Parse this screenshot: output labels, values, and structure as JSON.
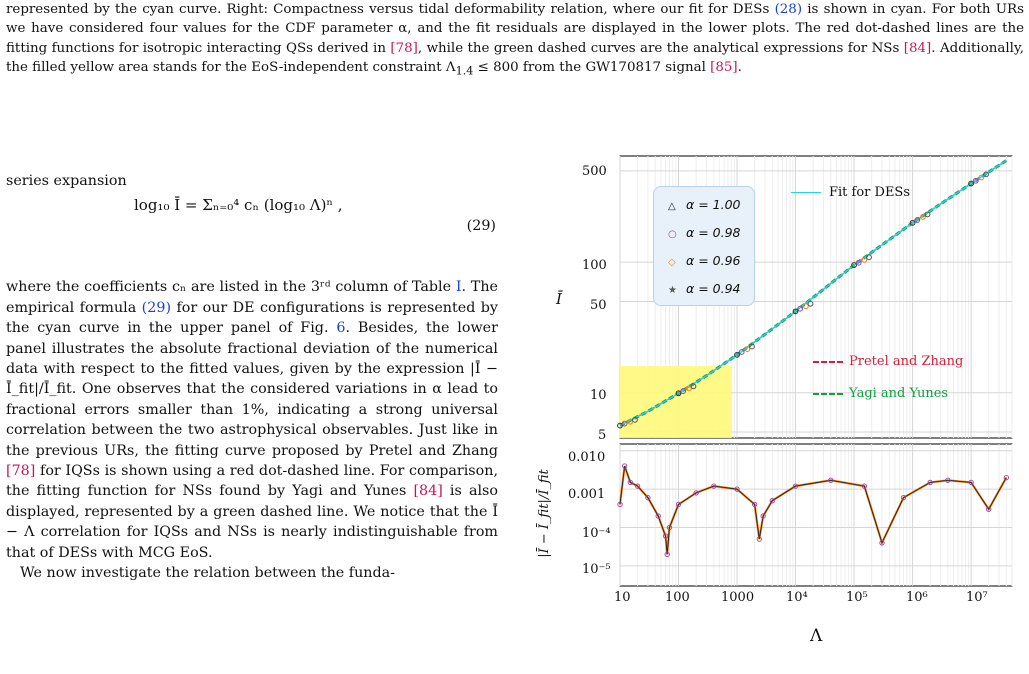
{
  "caption": {
    "line1a": "represented by the cyan curve. Right: Compactness versus tidal deformability relation, where our fit for DESs ",
    "line1ref": "(28)",
    "line1b": " is shown in cyan. For both URs we have considered four values for the CDF parameter α, and the fit residuals are displayed in the lower plots. The red dot-dashed lines are the fitting functions for isotropic interacting QSs derived in ",
    "ref78": "[78]",
    "line2": ", while the green dashed curves are the analytical expressions for NSs ",
    "ref84": "[84]",
    "line3": ". Additionally, the filled yellow area stands for the EoS-independent constraint Λ",
    "sub": "1.4",
    "line4": " ≤ 800 from the GW170817 signal ",
    "ref85": "[85]",
    "end": "."
  },
  "body": {
    "intro": "series expansion",
    "eq_formula": "log₁₀ Ī = Σₙ₌₀⁴ cₙ (log₁₀ Λ)ⁿ ,",
    "eq_number": "(29)",
    "p1a": "where the coefficients cₙ are listed in the 3ʳᵈ column of Table ",
    "p1tab": "I",
    "p1b": ". The empirical formula ",
    "p1eq": "(29)",
    "p1c": " for our DE configurations is represented by the cyan curve in the upper panel of Fig. ",
    "p1fig": "6",
    "p1d": ". Besides, the lower panel illustrates the absolute fractional deviation of the numerical data with respect to the fitted values, given by the expression |Ī − Ī_fit|/Ī_fit. One observes that the considered variations in α lead to fractional errors smaller than 1%, indicating a strong universal correlation between the two astrophysical observables. Just like in the previous URs, the fitting curve proposed by Pretel and Zhang ",
    "p1ref78": "[78]",
    "p1e": " for IQSs is shown using a red dot-dashed line. For comparison, the fitting function for NSs found by Yagi and Yunes ",
    "p1ref84": "[84]",
    "p1f": " is also displayed, represented by a green dashed line. We notice that the Ī − Λ correlation for IQSs and NSs is nearly indistinguishable from that of DESs with MCG EoS.",
    "p2": "We now investigate the relation between the funda-"
  },
  "figure": {
    "legend": {
      "a1": "α = 1.00",
      "a2": "α = 0.98",
      "a3": "α = 0.96",
      "a4": "α = 0.94",
      "m1": "△",
      "m2": "○",
      "m3": "◇",
      "m4": "★",
      "fit": "Fit for DESs",
      "pretel": "Pretel and Zhang",
      "yagi": "Yagi and Yunes"
    },
    "top_y_ticks": [
      "500",
      "100",
      "50",
      "10",
      "5"
    ],
    "bottom_y_ticks": [
      "0.010",
      "0.001",
      "10⁻⁴",
      "10⁻⁵"
    ],
    "x_ticks": [
      "10",
      "100",
      "1000",
      "10⁴",
      "10⁵",
      "10⁶",
      "10⁷"
    ],
    "top_ylabel": "Ī",
    "bottom_ylabel": "|Ī − Ī_fit|/Ī_fit",
    "xlabel": "Λ",
    "colors": {
      "fit": "#22d3e3",
      "pretel": "#d02040",
      "yagi": "#10a040",
      "constraint": "#fff87a"
    }
  },
  "chart_data": [
    {
      "type": "line",
      "title": "",
      "xlabel": "Λ",
      "ylabel": "Ī",
      "xscale": "log",
      "yscale": "log",
      "xlim": [
        10,
        50000000
      ],
      "ylim": [
        4.5,
        650
      ],
      "series": [
        {
          "name": "Fit for DESs",
          "x": [
            10,
            30,
            100,
            300,
            1000,
            3000,
            10000,
            100000,
            1000000,
            10000000,
            40000000
          ],
          "y": [
            5.6,
            7.2,
            9.9,
            13.5,
            19.5,
            28,
            42,
            95,
            200,
            400,
            600
          ]
        },
        {
          "name": "α = 1.00",
          "x": [
            10,
            100,
            1000,
            10000,
            100000,
            1000000,
            10000000
          ],
          "y": [
            5.6,
            9.9,
            19.5,
            42,
            95,
            200,
            400
          ]
        },
        {
          "name": "α = 0.98",
          "x": [
            12,
            120,
            1200,
            12000,
            120000,
            1200000,
            12000000
          ],
          "y": [
            5.8,
            10.3,
            20.5,
            44,
            99,
            210,
            420
          ]
        },
        {
          "name": "α = 0.96",
          "x": [
            15,
            150,
            1500,
            15000,
            150000,
            1500000,
            15000000
          ],
          "y": [
            6.0,
            10.8,
            21.6,
            46,
            104,
            222,
            445
          ]
        },
        {
          "name": "α = 0.94",
          "x": [
            18,
            180,
            1800,
            18000,
            180000,
            1800000,
            18000000
          ],
          "y": [
            6.2,
            11.2,
            22.6,
            48,
            109,
            232,
            470
          ]
        },
        {
          "name": "Pretel and Zhang",
          "x": [
            10,
            100,
            1000,
            10000,
            100000,
            1000000,
            10000000
          ],
          "y": [
            5.6,
            9.9,
            19.5,
            42,
            95,
            200,
            400
          ]
        },
        {
          "name": "Yagi and Yunes",
          "x": [
            10,
            100,
            1000,
            10000,
            100000,
            1000000,
            10000000
          ],
          "y": [
            5.6,
            9.9,
            19.5,
            42,
            95,
            200,
            400
          ]
        }
      ],
      "constraint": {
        "x": [
          10,
          800
        ],
        "y": [
          4.5,
          16
        ]
      }
    },
    {
      "type": "line",
      "title": "",
      "xlabel": "Λ",
      "ylabel": "|Ī − Ī_fit|/Ī_fit",
      "xscale": "log",
      "yscale": "log",
      "xlim": [
        10,
        50000000
      ],
      "ylim": [
        3e-06,
        0.015
      ],
      "series": [
        {
          "name": "α = 1.00",
          "x": [
            10,
            12,
            15,
            20,
            30,
            45,
            60,
            64,
            70,
            100,
            200,
            400,
            1000,
            2000,
            2400,
            2800,
            4000,
            10000,
            40000,
            150000,
            300000,
            700000,
            2000000,
            4000000,
            10000000,
            20000000,
            40000000
          ],
          "y": [
            0.0004,
            0.004,
            0.0015,
            0.0012,
            0.0006,
            0.0002,
            6e-05,
            2e-05,
            0.0001,
            0.0004,
            0.0008,
            0.0012,
            0.001,
            0.0004,
            5e-05,
            0.0002,
            0.0005,
            0.0012,
            0.0017,
            0.0012,
            4e-05,
            0.0006,
            0.0015,
            0.0017,
            0.0015,
            0.0003,
            0.002
          ]
        }
      ]
    }
  ]
}
